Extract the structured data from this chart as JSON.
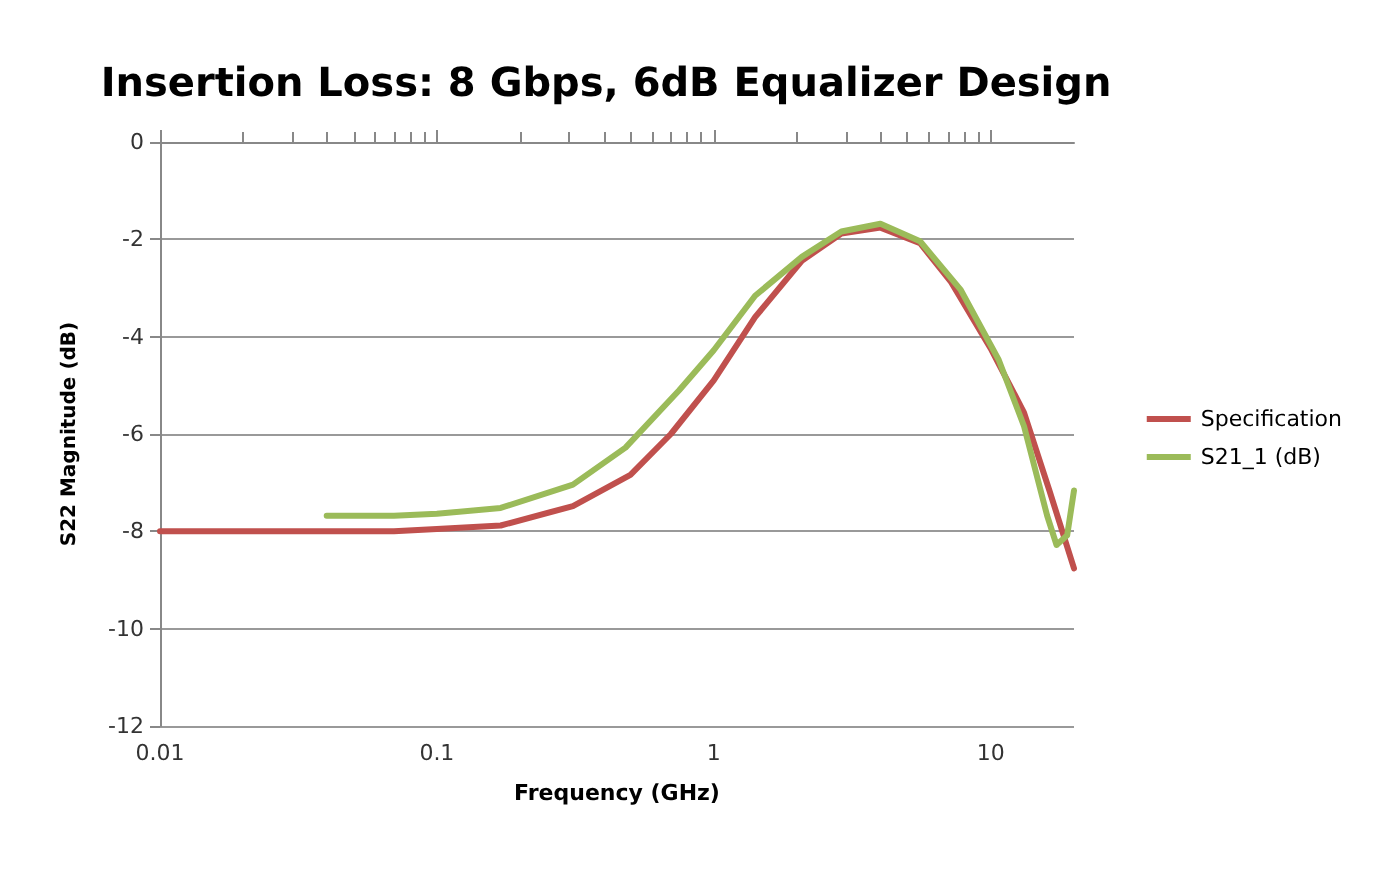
{
  "chart_data": {
    "type": "line",
    "title": "Insertion Loss: 8 Gbps, 6dB Equalizer Design",
    "xlabel": "Frequency (GHz)",
    "ylabel": "S22 Magnitude (dB)",
    "log": "x",
    "xlim": [
      0.01,
      20
    ],
    "xticks": [
      0.01,
      0.1,
      1,
      10
    ],
    "ylim": [
      -12,
      0
    ],
    "yticks": [
      -12,
      -10,
      -8,
      -6,
      -4,
      -2,
      0
    ],
    "grid": "y",
    "legend": "right",
    "marker": "none",
    "line_style": "solid",
    "series": [
      {
        "name": "Specification",
        "color": "#c0504d",
        "x": [
          0.01,
          0.03,
          0.07,
          0.1,
          0.17,
          0.31,
          0.5,
          0.7,
          1,
          1.41,
          2.08,
          2.89,
          4,
          5.56,
          7.2,
          10,
          13.2,
          16.3,
          20
        ],
        "values": [
          -8,
          -8,
          -8,
          -7.95,
          -7.88,
          -7.48,
          -6.84,
          -6,
          -4.9,
          -3.6,
          -2.44,
          -1.88,
          -1.76,
          -2.08,
          -2.88,
          -4.24,
          -5.56,
          -7.16,
          -8.76
        ]
      },
      {
        "name": "S21_1 (dB)",
        "color": "#9bbb59",
        "x": [
          0.04,
          0.07,
          0.1,
          0.17,
          0.31,
          0.48,
          0.75,
          1,
          1.41,
          2.08,
          2.89,
          4,
          5.56,
          7.8,
          10.7,
          13.2,
          16,
          17.3,
          18.9,
          20
        ],
        "values": [
          -7.68,
          -7.68,
          -7.64,
          -7.52,
          -7.04,
          -6.28,
          -5.1,
          -4.28,
          -3.16,
          -2.36,
          -1.84,
          -1.68,
          -2.04,
          -3.04,
          -4.48,
          -5.84,
          -7.68,
          -8.28,
          -8.08,
          -7.16
        ]
      }
    ]
  }
}
